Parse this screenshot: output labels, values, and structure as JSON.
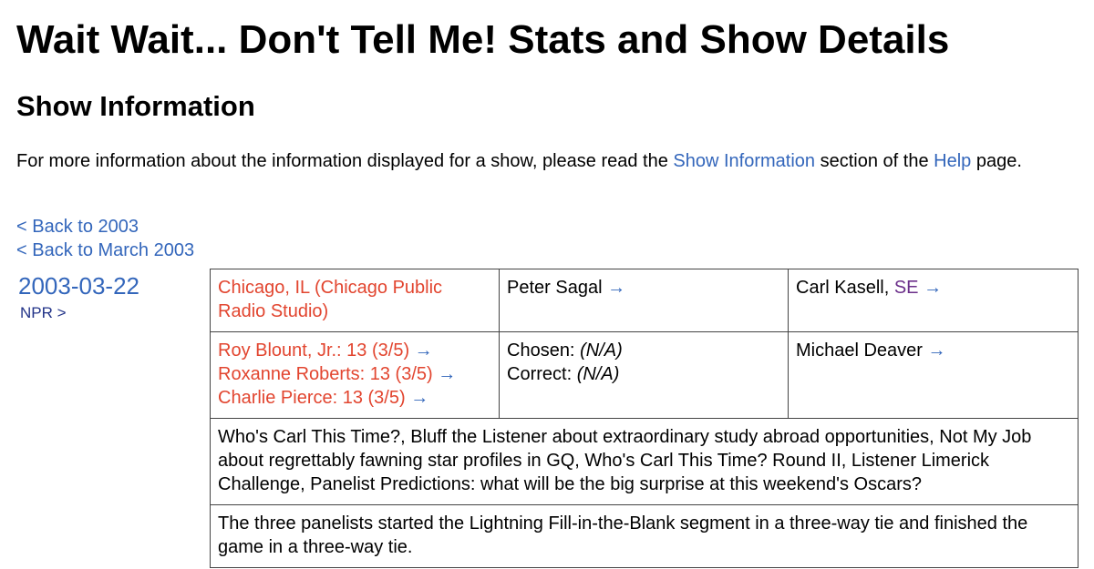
{
  "page": {
    "title": "Wait Wait... Don't Tell Me! Stats and Show Details"
  },
  "section": {
    "title": "Show Information"
  },
  "intro": {
    "text_before": "For more information about the information displayed for a show, please read the ",
    "show_info_link": "Show Information",
    "text_middle": " section of the ",
    "help_link": "Help",
    "text_after": " page."
  },
  "nav": {
    "back_year": "< Back to 2003",
    "back_month": "< Back to March 2003"
  },
  "show": {
    "date": "2003-03-22",
    "network": "NPR >",
    "location": "Chicago, IL (Chicago Public Radio Studio)",
    "host": {
      "name": "Peter Sagal",
      "arrow": "→"
    },
    "scorekeeper": {
      "name": "Carl Kasell",
      "separator": ", ",
      "tag": "SE",
      "arrow": "→"
    },
    "panelists": [
      {
        "text": "Roy Blount, Jr.: 13 (3/5)",
        "arrow": "→"
      },
      {
        "text": "Roxanne Roberts: 13 (3/5)",
        "arrow": "→"
      },
      {
        "text": "Charlie Pierce: 13 (3/5)",
        "arrow": "→"
      }
    ],
    "bluff": {
      "chosen_label": "Chosen: ",
      "chosen_value": "(N/A)",
      "correct_label": "Correct: ",
      "correct_value": "(N/A)"
    },
    "guest": {
      "name": "Michael Deaver",
      "arrow": "→"
    },
    "segments": "Who's Carl This Time?, Bluff the Listener about extraordinary study abroad opportunities, Not My Job about regrettably fawning star profiles in GQ, Who's Carl This Time? Round II, Listener Limerick Challenge, Panelist Predictions: what will be the big surprise at this weekend's Oscars?",
    "notes": "The three panelists started the Lightning Fill-in-the-Blank segment in a three-way tie and finished the game in a three-way tie."
  },
  "colors": {
    "link": "#3366bb",
    "location_link": "#e2452f",
    "panelist_link": "#e2452f",
    "tag_link": "#6b2f8a",
    "network_link": "#223388"
  }
}
